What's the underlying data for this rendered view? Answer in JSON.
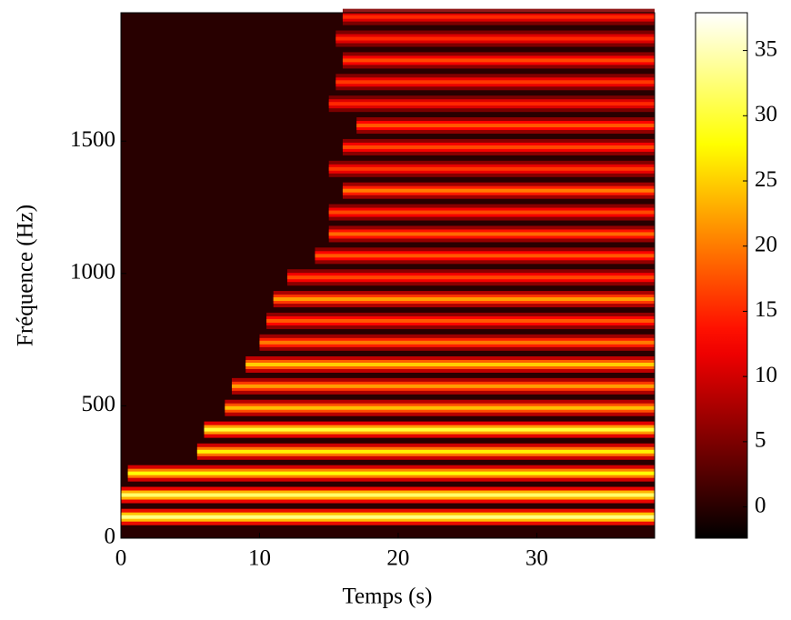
{
  "chart_data": {
    "type": "spectrogram",
    "xlabel": "Temps (s)",
    "ylabel": "Fréquence (Hz)",
    "xlim": [
      0,
      38.5
    ],
    "xticks": [
      0,
      10,
      20,
      30
    ],
    "ylim": [
      0,
      1985
    ],
    "yticks": [
      0,
      500,
      1000,
      1500
    ],
    "colormap": "hot",
    "clim": [
      -2.4,
      37.9
    ],
    "cticks": [
      0,
      5,
      10,
      15,
      20,
      25,
      30,
      35
    ],
    "background_level": 0,
    "harmonics": [
      {
        "frequency": 80,
        "onset": 0,
        "level": 33
      },
      {
        "frequency": 163,
        "onset": 0,
        "level": 32
      },
      {
        "frequency": 245,
        "onset": 0.5,
        "level": 28
      },
      {
        "frequency": 327,
        "onset": 5.5,
        "level": 27
      },
      {
        "frequency": 410,
        "onset": 6,
        "level": 30
      },
      {
        "frequency": 492,
        "onset": 7.5,
        "level": 24
      },
      {
        "frequency": 574,
        "onset": 8,
        "level": 22
      },
      {
        "frequency": 656,
        "onset": 9,
        "level": 25
      },
      {
        "frequency": 739,
        "onset": 10,
        "level": 20
      },
      {
        "frequency": 821,
        "onset": 10.5,
        "level": 18
      },
      {
        "frequency": 903,
        "onset": 11,
        "level": 22
      },
      {
        "frequency": 985,
        "onset": 12,
        "level": 17
      },
      {
        "frequency": 1067,
        "onset": 14,
        "level": 18
      },
      {
        "frequency": 1149,
        "onset": 15,
        "level": 19
      },
      {
        "frequency": 1231,
        "onset": 15,
        "level": 17
      },
      {
        "frequency": 1313,
        "onset": 16,
        "level": 20
      },
      {
        "frequency": 1395,
        "onset": 15,
        "level": 16
      },
      {
        "frequency": 1477,
        "onset": 16,
        "level": 17
      },
      {
        "frequency": 1559,
        "onset": 17,
        "level": 18
      },
      {
        "frequency": 1641,
        "onset": 15,
        "level": 15
      },
      {
        "frequency": 1723,
        "onset": 15.5,
        "level": 16
      },
      {
        "frequency": 1805,
        "onset": 16,
        "level": 17
      },
      {
        "frequency": 1887,
        "onset": 15.5,
        "level": 15
      },
      {
        "frequency": 1969,
        "onset": 16,
        "level": 15
      }
    ]
  }
}
